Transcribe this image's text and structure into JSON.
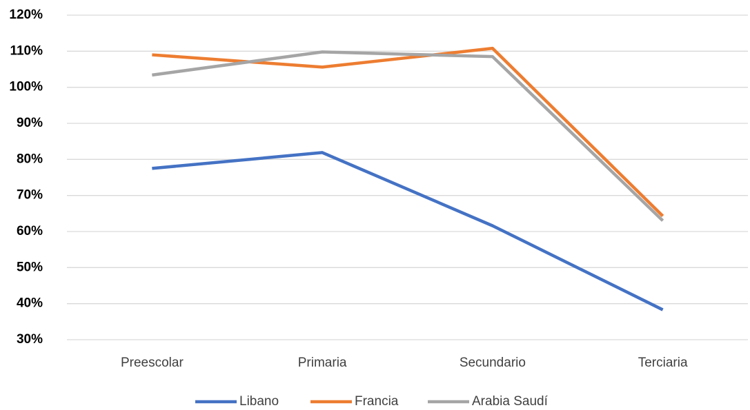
{
  "chart_data": {
    "type": "line",
    "categories": [
      "Preescolar",
      "Primaria",
      "Secundario",
      "Terciaria"
    ],
    "series": [
      {
        "name": "Libano",
        "color": "#4472c4",
        "values": [
          77.5,
          81.9,
          61.6,
          38.3
        ]
      },
      {
        "name": "Francia",
        "color": "#ed7d31",
        "values": [
          109,
          105.6,
          110.8,
          64.3
        ]
      },
      {
        "name": "Arabia Saudí",
        "color": "#a5a5a5",
        "values": [
          103.4,
          109.8,
          108.5,
          63
        ]
      }
    ],
    "ylim": [
      30,
      120
    ],
    "yticks": [
      {
        "value": 30,
        "label": "30%"
      },
      {
        "value": 40,
        "label": "40%"
      },
      {
        "value": 50,
        "label": "50%"
      },
      {
        "value": 60,
        "label": "60%"
      },
      {
        "value": 70,
        "label": "70%"
      },
      {
        "value": 80,
        "label": "80%"
      },
      {
        "value": 90,
        "label": "90%"
      },
      {
        "value": 100,
        "label": "100%"
      },
      {
        "value": 110,
        "label": "110%"
      },
      {
        "value": 120,
        "label": "120%"
      }
    ],
    "grid": true,
    "legend": "bottom"
  }
}
